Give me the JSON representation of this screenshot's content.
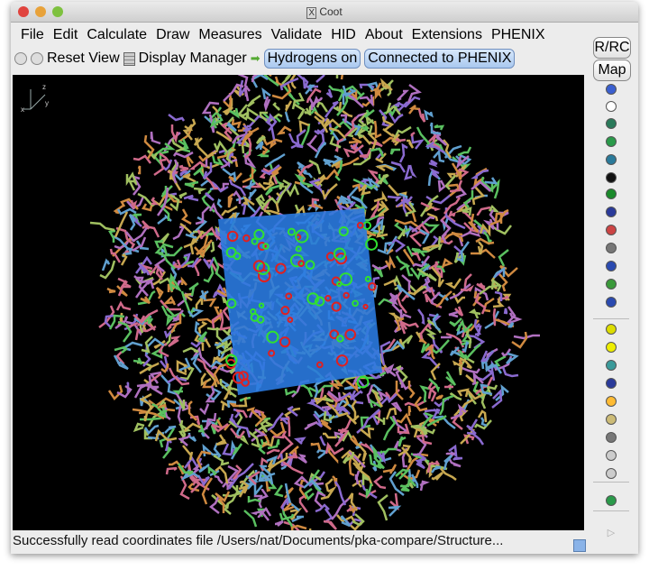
{
  "window": {
    "title": "Coot",
    "title_icon": "x11-icon"
  },
  "menu": [
    "File",
    "Edit",
    "Calculate",
    "Draw",
    "Measures",
    "Validate",
    "HID",
    "About",
    "Extensions",
    "PHENIX"
  ],
  "toolbar": {
    "reset_view": "Reset View",
    "display_manager": "Display Manager",
    "hydrogens": "Hydrogens on",
    "phenix": "Connected to PHENIX"
  },
  "side": {
    "rrc": "R/RC",
    "map": "Map",
    "icons": [
      "sphere-refine-icon",
      "clock-regularize-icon",
      "anchor-icon",
      "rigid-body-fit-icon",
      "rigid-body-fit-residues-icon",
      "expand-arrow-icon",
      "auto-fit-rotamer-icon",
      "rotamers-icon",
      "edit-chi-icon",
      "torsion-general-icon",
      "flip-peptide-icon",
      "side-chain-180-icon",
      "cis-trans-icon",
      "place-atom-icon",
      "delete-icon",
      "add-alt-conf-icon",
      "mutate-icon",
      "add-terminal-residue-icon",
      "merge-icon",
      "undo-icon",
      "redo-icon",
      "trash-icon",
      "rotate-translate-icon",
      "accept-icon",
      "sequence-view-icon",
      "play-icon"
    ]
  },
  "viewport": {
    "axes": {
      "z": "z",
      "y": "y",
      "x": "x"
    }
  },
  "status": "Successfully read coordinates file /Users/nat/Documents/pka-compare/Structure..."
}
